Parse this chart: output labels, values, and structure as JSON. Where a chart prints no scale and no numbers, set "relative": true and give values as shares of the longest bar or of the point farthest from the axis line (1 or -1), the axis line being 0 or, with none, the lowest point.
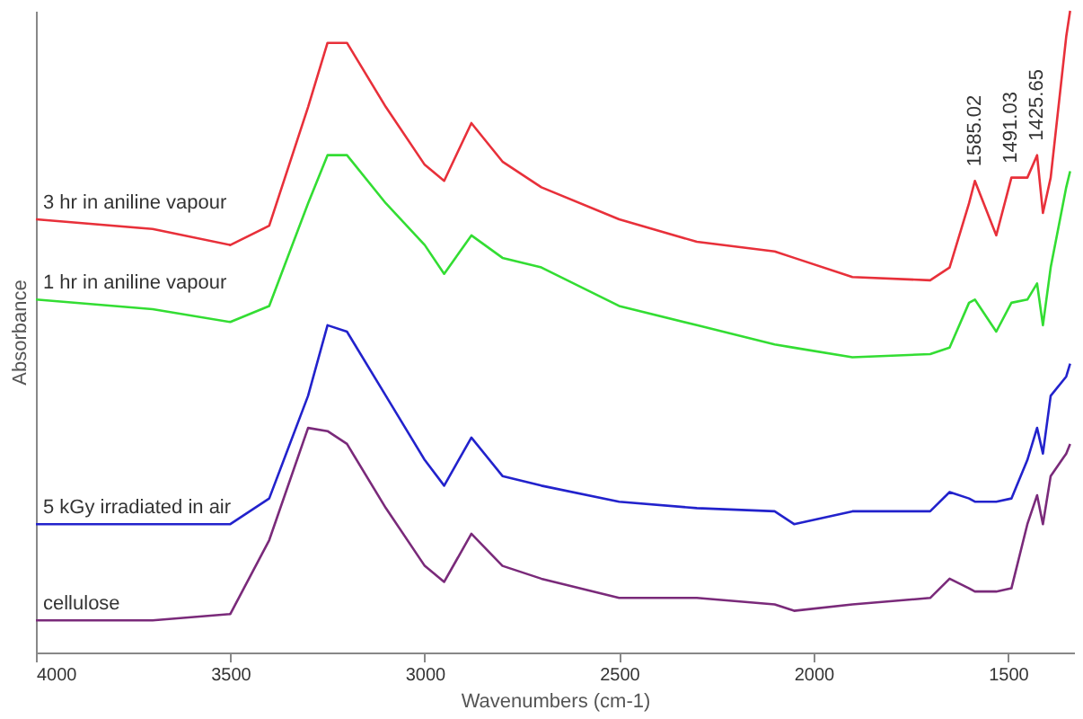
{
  "chart_data": {
    "type": "line",
    "relative": true,
    "xlabel": "Wavenumbers (cm-1)",
    "ylabel": "Absorbance",
    "xlim": [
      4000,
      1330
    ],
    "xticks": [
      4000,
      3500,
      3000,
      2500,
      2000,
      1500
    ],
    "grid": false,
    "legend": false,
    "marker": "none",
    "line_style": "solid",
    "x": [
      4000,
      3700,
      3500,
      3400,
      3300,
      3250,
      3200,
      3100,
      3000,
      2950,
      2880,
      2800,
      2700,
      2500,
      2300,
      2100,
      2050,
      1900,
      1700,
      1650,
      1600,
      1585,
      1530,
      1491,
      1450,
      1425,
      1410,
      1390,
      1350,
      1340
    ],
    "series": [
      {
        "name": "3 hr in aniline vapour",
        "color": "#e8303a",
        "values": [
          0.675,
          0.66,
          0.635,
          0.665,
          0.85,
          0.95,
          0.95,
          0.85,
          0.76,
          0.735,
          0.825,
          0.765,
          0.725,
          0.675,
          0.64,
          0.625,
          0.615,
          0.585,
          0.58,
          0.6,
          0.7,
          0.735,
          0.65,
          0.74,
          0.74,
          0.775,
          0.685,
          0.74,
          0.96,
          1
        ]
      },
      {
        "name": "1 hr in aniline vapour",
        "color": "#33dd33",
        "values": [
          0.55,
          0.535,
          0.515,
          0.54,
          0.7,
          0.775,
          0.775,
          0.7,
          0.635,
          0.59,
          0.65,
          0.615,
          0.6,
          0.54,
          0.51,
          0.48,
          0.475,
          0.46,
          0.465,
          0.475,
          0.545,
          0.55,
          0.5,
          0.545,
          0.55,
          0.575,
          0.51,
          0.6,
          0.725,
          0.75
        ]
      },
      {
        "name": "5 kGy irradiated in air",
        "color": "#2222cc",
        "values": [
          0.2,
          0.2,
          0.2,
          0.24,
          0.4,
          0.51,
          0.5,
          0.4,
          0.3,
          0.26,
          0.335,
          0.275,
          0.26,
          0.235,
          0.225,
          0.22,
          0.2,
          0.22,
          0.22,
          0.25,
          0.24,
          0.235,
          0.235,
          0.24,
          0.3,
          0.35,
          0.31,
          0.4,
          0.43,
          0.45
        ]
      },
      {
        "name": "cellulose",
        "color": "#7a2a7a",
        "values": [
          0.05,
          0.05,
          0.06,
          0.175,
          0.35,
          0.345,
          0.325,
          0.225,
          0.135,
          0.11,
          0.185,
          0.135,
          0.115,
          0.085,
          0.085,
          0.075,
          0.065,
          0.075,
          0.085,
          0.115,
          0.1,
          0.095,
          0.095,
          0.1,
          0.2,
          0.245,
          0.2,
          0.275,
          0.31,
          0.325
        ]
      }
    ],
    "annotations": [
      {
        "text": "1585.02",
        "x": 1585,
        "y": 0.735
      },
      {
        "text": "1491.03",
        "x": 1491,
        "y": 0.74
      },
      {
        "text": "1425.65",
        "x": 1425,
        "y": 0.775
      }
    ]
  }
}
